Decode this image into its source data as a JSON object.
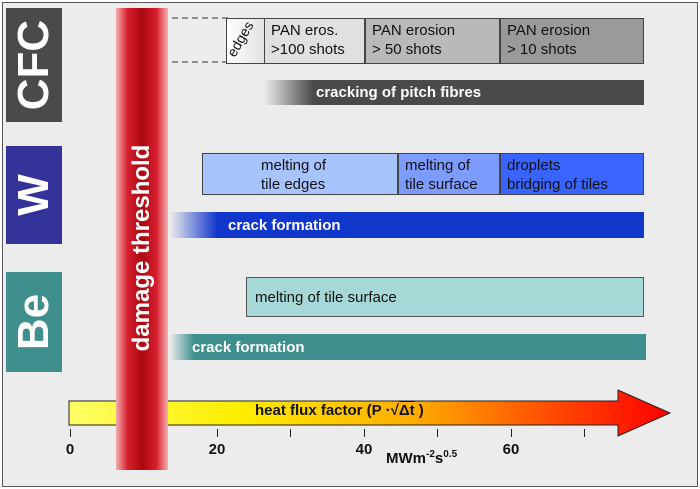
{
  "materials": [
    "CFC",
    "W",
    "Be"
  ],
  "damage_threshold": "damage threshold",
  "cfc": {
    "edges": "edges",
    "pan_100": [
      "PAN eros.",
      ">100 shots"
    ],
    "pan_50": [
      "PAN erosion",
      "> 50 shots"
    ],
    "pan_10": [
      "PAN erosion",
      "> 10 shots"
    ],
    "pitch": "cracking of pitch fibres"
  },
  "w": {
    "edges": [
      "melting of",
      "tile edges"
    ],
    "surface": [
      "melting of",
      "tile surface"
    ],
    "droplets": [
      "droplets",
      "bridging of tiles"
    ],
    "crack": "crack formation"
  },
  "be": {
    "surface": "melting of tile surface",
    "crack": "crack formation"
  },
  "axis": {
    "label_text": "heat flux factor (P ·",
    "sqrt_symbol": "√",
    "delta_t": "Δt",
    "label_close": " )",
    "ticks": [
      "0",
      "20",
      "40",
      "60"
    ],
    "unit_base": "MWm",
    "unit_exp1": "-2",
    "unit_s": "s",
    "unit_exp2": "0.5"
  },
  "colors": {
    "cfc": "#4a4a4a",
    "w": "#333399",
    "be": "#3f8f8f",
    "threshold": "#c0101a"
  }
}
